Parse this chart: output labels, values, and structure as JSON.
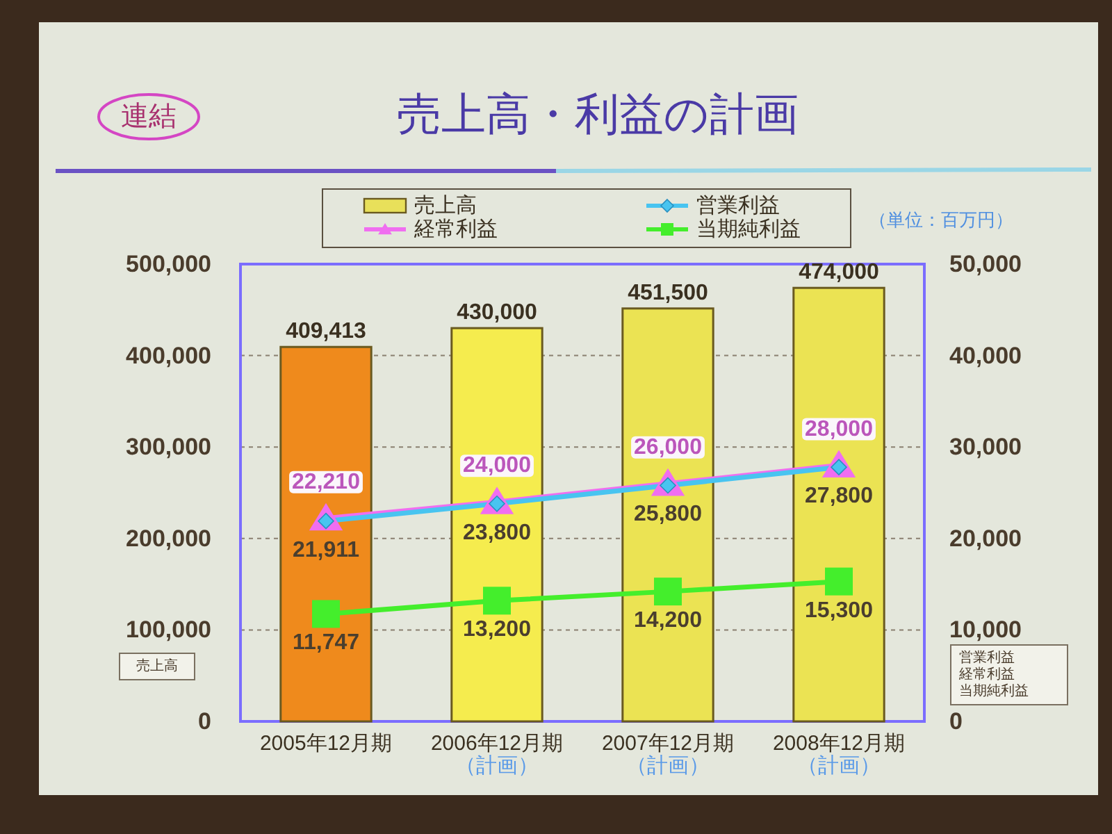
{
  "chart_data": {
    "type": "bar",
    "title": "売上高・利益の計画",
    "annotations": [
      "連結",
      "（単位：百万円）"
    ],
    "categories": [
      "2005年12月期",
      "2006年12月期（計画）",
      "2007年12月期（計画）",
      "2008年12月期（計画）"
    ],
    "ylim": [
      0,
      500000
    ],
    "yticks": [
      {
        "value": 0,
        "label": "0"
      },
      {
        "value": 100000,
        "label": "100,000"
      },
      {
        "value": 200000,
        "label": "200,000"
      },
      {
        "value": 300000,
        "label": "300,000"
      },
      {
        "value": 400000,
        "label": "400,000"
      },
      {
        "value": 500000,
        "label": "500,000"
      }
    ],
    "y2lim": [
      0,
      50000
    ],
    "y2ticks": [
      {
        "value": 0,
        "label": "0"
      },
      {
        "value": 10000,
        "label": "10,000"
      },
      {
        "value": 20000,
        "label": "20,000"
      },
      {
        "value": 30000,
        "label": "30,000"
      },
      {
        "value": 40000,
        "label": "40,000"
      },
      {
        "value": 50000,
        "label": "50,000"
      }
    ],
    "grid": "y",
    "legend": "top",
    "line_style": "solid",
    "series": [
      {
        "name": "売上高",
        "color": "#e8e05a",
        "colors": [
          "#ef8a1c",
          "#f5ec4e",
          "#ebe353",
          "#ebe353"
        ],
        "values": [
          409413,
          430000,
          451500,
          474000
        ],
        "value_labels": [
          "409,413",
          "430,000",
          "451,500",
          "474,000"
        ]
      },
      {
        "name": "営業利益",
        "type": "line",
        "axis": "y2",
        "color": "#48c4f0",
        "marker": "diamond",
        "values": [
          21911,
          23800,
          25800,
          27800
        ],
        "value_labels": [
          "21,911",
          "23,800",
          "25,800",
          "27,800"
        ]
      },
      {
        "name": "経常利益",
        "type": "line",
        "axis": "y2",
        "color": "#f06ef0",
        "marker": "triangle",
        "values": [
          22210,
          24000,
          26000,
          28000
        ],
        "value_labels": [
          "22,210",
          "24,000",
          "26,000",
          "28,000"
        ]
      },
      {
        "name": "当期純利益",
        "type": "line",
        "axis": "y2",
        "color": "#44ee2c",
        "marker": "square",
        "values": [
          11747,
          13200,
          14200,
          15300
        ],
        "value_labels": [
          "11,747",
          "13,200",
          "14,200",
          "15,300"
        ]
      }
    ]
  }
}
